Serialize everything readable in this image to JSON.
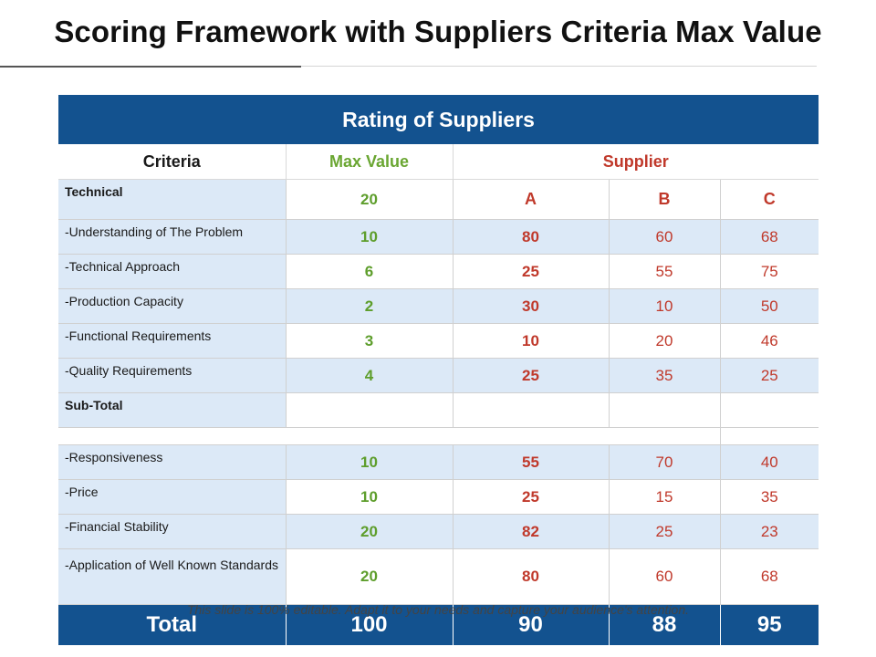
{
  "title": "Scoring Framework with Suppliers Criteria Max Value",
  "table": {
    "banner": "Rating of Suppliers",
    "headers": {
      "criteria": "Criteria",
      "max_value": "Max Value",
      "supplier": "Supplier"
    },
    "technical": {
      "label": "Technical",
      "max_value": "20",
      "a": "A",
      "b": "B",
      "c": "C"
    },
    "rows": [
      {
        "label": "-Understanding of The Problem",
        "max_value": "10",
        "a": "80",
        "b": "60",
        "c": "68"
      },
      {
        "label": "-Technical Approach",
        "max_value": "6",
        "a": "25",
        "b": "55",
        "c": "75"
      },
      {
        "label": "-Production Capacity",
        "max_value": "2",
        "a": "30",
        "b": "10",
        "c": "50"
      },
      {
        "label": "-Functional Requirements",
        "max_value": "3",
        "a": "10",
        "b": "20",
        "c": "46"
      },
      {
        "label": "-Quality Requirements",
        "max_value": "4",
        "a": "25",
        "b": "35",
        "c": "25"
      }
    ],
    "subtotal_label": "Sub-Total",
    "rows2": [
      {
        "label": "-Responsiveness",
        "max_value": "10",
        "a": "55",
        "b": "70",
        "c": "40"
      },
      {
        "label": "-Price",
        "max_value": "10",
        "a": "25",
        "b": "15",
        "c": "35"
      },
      {
        "label": "-Financial Stability",
        "max_value": "20",
        "a": "82",
        "b": "25",
        "c": "23"
      },
      {
        "label": "-Application of Well Known Standards",
        "max_value": "20",
        "a": "80",
        "b": "60",
        "c": "68"
      }
    ],
    "total": {
      "label": "Total",
      "max_value": "100",
      "a": "90",
      "b": "88",
      "c": "95"
    }
  },
  "footnote": "This slide is 100% editable. Adapt it to your needs and capture your audience's attention.",
  "colors": {
    "header_blue": "#13528f",
    "row_blue": "#dce9f7",
    "green": "#5e9e2c",
    "red": "#c0392b"
  }
}
